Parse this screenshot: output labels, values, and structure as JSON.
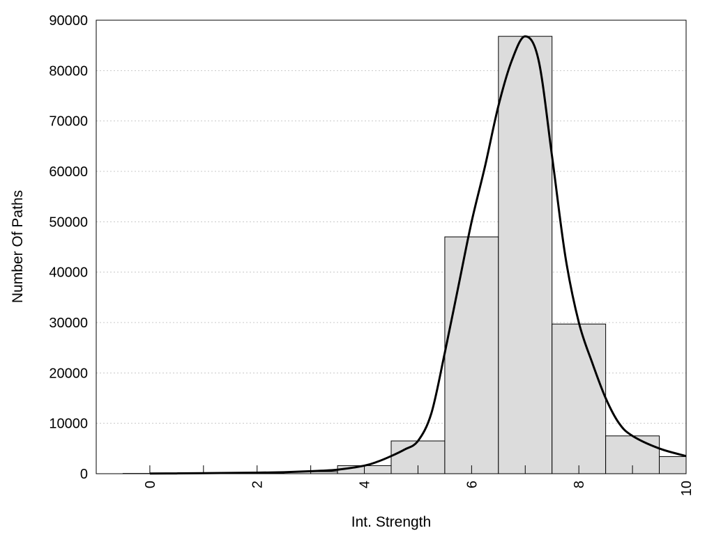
{
  "chart_data": {
    "type": "bar",
    "title": "",
    "xlabel": "Int. Strength",
    "ylabel": "Number Of Paths",
    "xlim": [
      -1,
      10
    ],
    "ylim": [
      0,
      90000
    ],
    "x_ticks": [
      0,
      2,
      4,
      6,
      8,
      10
    ],
    "x_minor_ticks": [
      1,
      3,
      5,
      7,
      9
    ],
    "y_ticks": [
      0,
      10000,
      20000,
      30000,
      40000,
      50000,
      60000,
      70000,
      80000,
      90000
    ],
    "grid": "horizontal dotted",
    "legend": "none",
    "bars": {
      "x": [
        0,
        1,
        2,
        3,
        4,
        5,
        6,
        7,
        8,
        9,
        10
      ],
      "values": [
        50,
        100,
        150,
        400,
        1600,
        6500,
        47000,
        86800,
        29700,
        7500,
        3400
      ],
      "width": 1
    },
    "curve": {
      "x": [
        0,
        0.5,
        1,
        1.5,
        2,
        2.5,
        3,
        3.5,
        4,
        4.25,
        4.5,
        4.75,
        5,
        5.25,
        5.5,
        5.75,
        6,
        6.25,
        6.5,
        6.75,
        7,
        7.25,
        7.5,
        7.75,
        8,
        8.25,
        8.5,
        8.75,
        9,
        9.5,
        10
      ],
      "values": [
        30,
        60,
        100,
        150,
        200,
        300,
        500,
        800,
        1600,
        2400,
        3500,
        4800,
        6500,
        12000,
        24000,
        37000,
        50000,
        61000,
        73000,
        82000,
        86800,
        82000,
        63000,
        43000,
        30000,
        22000,
        15000,
        10000,
        7500,
        5000,
        3500
      ]
    },
    "colors": {
      "bar_fill": "#dcdcdc",
      "bar_stroke": "#000000",
      "curve": "#000000",
      "grid": "#c8c8c8"
    }
  }
}
